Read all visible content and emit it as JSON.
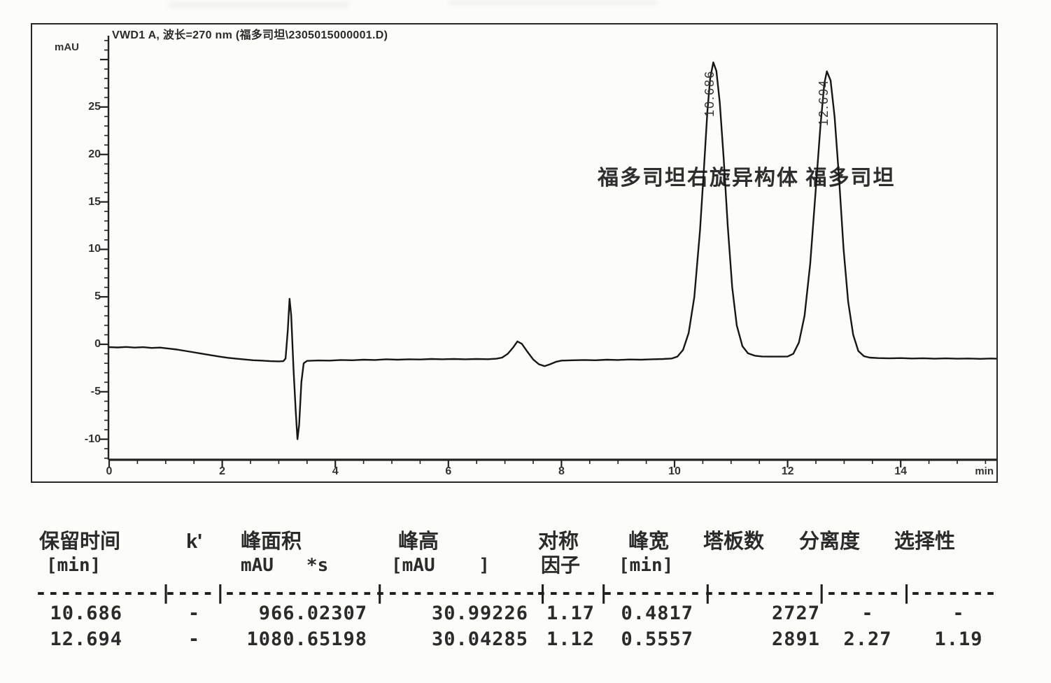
{
  "chromatogram": {
    "title": "VWD1 A, 波长=270 nm (福多司坦\\2305015000001.D)",
    "y_unit": "mAU",
    "x_unit": "min",
    "annotation": "福多司坦右旋异构体 福多司坦"
  },
  "chart_data": {
    "type": "line",
    "title": "VWD1 A, 波长=270 nm (福多司坦\\2305015000001.D)",
    "xlabel": "min",
    "ylabel": "mAU",
    "xlim": [
      0,
      15.7
    ],
    "ylim": [
      -12.2,
      32.5
    ],
    "grid": false,
    "x_ticks": [
      0,
      2,
      4,
      6,
      8,
      10,
      12,
      14
    ],
    "y_ticks": [
      -10,
      -5,
      0,
      5,
      10,
      15,
      20,
      25
    ],
    "peaks": [
      {
        "label": "10.686",
        "t": 10.686,
        "apex_mau": 29.7,
        "name": "福多司坦右旋异构体"
      },
      {
        "label": "12.694",
        "t": 12.694,
        "apex_mau": 28.75,
        "name": "福多司坦"
      }
    ],
    "trace": [
      [
        0,
        -0.3
      ],
      [
        0.15,
        -0.33
      ],
      [
        0.3,
        -0.28
      ],
      [
        0.45,
        -0.35
      ],
      [
        0.6,
        -0.3
      ],
      [
        0.75,
        -0.38
      ],
      [
        0.9,
        -0.35
      ],
      [
        1.05,
        -0.45
      ],
      [
        1.2,
        -0.55
      ],
      [
        1.35,
        -0.7
      ],
      [
        1.5,
        -0.85
      ],
      [
        1.65,
        -1
      ],
      [
        1.8,
        -1.15
      ],
      [
        1.95,
        -1.3
      ],
      [
        2.1,
        -1.42
      ],
      [
        2.25,
        -1.52
      ],
      [
        2.4,
        -1.6
      ],
      [
        2.55,
        -1.68
      ],
      [
        2.7,
        -1.72
      ],
      [
        2.85,
        -1.78
      ],
      [
        3,
        -1.8
      ],
      [
        3.08,
        -1.78
      ],
      [
        3.12,
        -1.5
      ],
      [
        3.16,
        1.5
      ],
      [
        3.19,
        4.8
      ],
      [
        3.22,
        3
      ],
      [
        3.26,
        -2.5
      ],
      [
        3.3,
        -7
      ],
      [
        3.33,
        -10
      ],
      [
        3.36,
        -8.5
      ],
      [
        3.4,
        -4
      ],
      [
        3.44,
        -2
      ],
      [
        3.5,
        -1.75
      ],
      [
        3.7,
        -1.7
      ],
      [
        3.9,
        -1.72
      ],
      [
        4.1,
        -1.65
      ],
      [
        4.3,
        -1.68
      ],
      [
        4.5,
        -1.62
      ],
      [
        4.7,
        -1.65
      ],
      [
        4.9,
        -1.58
      ],
      [
        5.1,
        -1.62
      ],
      [
        5.3,
        -1.58
      ],
      [
        5.5,
        -1.6
      ],
      [
        5.7,
        -1.55
      ],
      [
        5.9,
        -1.58
      ],
      [
        6.1,
        -1.55
      ],
      [
        6.3,
        -1.58
      ],
      [
        6.5,
        -1.55
      ],
      [
        6.7,
        -1.57
      ],
      [
        6.85,
        -1.52
      ],
      [
        6.95,
        -1.4
      ],
      [
        7.05,
        -1
      ],
      [
        7.15,
        -0.3
      ],
      [
        7.22,
        0.3
      ],
      [
        7.3,
        0.05
      ],
      [
        7.4,
        -0.8
      ],
      [
        7.5,
        -1.6
      ],
      [
        7.6,
        -2.1
      ],
      [
        7.7,
        -2.3
      ],
      [
        7.8,
        -2.1
      ],
      [
        7.9,
        -1.85
      ],
      [
        8,
        -1.72
      ],
      [
        8.2,
        -1.68
      ],
      [
        8.4,
        -1.65
      ],
      [
        8.6,
        -1.68
      ],
      [
        8.8,
        -1.62
      ],
      [
        9,
        -1.65
      ],
      [
        9.2,
        -1.6
      ],
      [
        9.4,
        -1.62
      ],
      [
        9.6,
        -1.58
      ],
      [
        9.8,
        -1.55
      ],
      [
        9.95,
        -1.5
      ],
      [
        10.05,
        -1.3
      ],
      [
        10.15,
        -0.6
      ],
      [
        10.25,
        1.2
      ],
      [
        10.35,
        5
      ],
      [
        10.45,
        12
      ],
      [
        10.52,
        18.5
      ],
      [
        10.58,
        24.5
      ],
      [
        10.63,
        28
      ],
      [
        10.686,
        29.7
      ],
      [
        10.74,
        28.8
      ],
      [
        10.8,
        25.5
      ],
      [
        10.87,
        19.5
      ],
      [
        10.94,
        12.5
      ],
      [
        11.02,
        6
      ],
      [
        11.1,
        2
      ],
      [
        11.2,
        -0.2
      ],
      [
        11.3,
        -0.95
      ],
      [
        11.42,
        -1.2
      ],
      [
        11.55,
        -1.28
      ],
      [
        11.7,
        -1.3
      ],
      [
        11.85,
        -1.3
      ],
      [
        12,
        -1.28
      ],
      [
        12.1,
        -1
      ],
      [
        12.2,
        0.2
      ],
      [
        12.3,
        3
      ],
      [
        12.4,
        8.5
      ],
      [
        12.5,
        16.5
      ],
      [
        12.58,
        23
      ],
      [
        12.65,
        27.5
      ],
      [
        12.694,
        28.75
      ],
      [
        12.76,
        27.8
      ],
      [
        12.83,
        24
      ],
      [
        12.91,
        17.5
      ],
      [
        12.99,
        10
      ],
      [
        13.07,
        4.5
      ],
      [
        13.16,
        1
      ],
      [
        13.25,
        -0.7
      ],
      [
        13.35,
        -1.25
      ],
      [
        13.45,
        -1.4
      ],
      [
        13.6,
        -1.45
      ],
      [
        13.8,
        -1.48
      ],
      [
        14,
        -1.45
      ],
      [
        14.2,
        -1.5
      ],
      [
        14.4,
        -1.47
      ],
      [
        14.6,
        -1.52
      ],
      [
        14.8,
        -1.48
      ],
      [
        15,
        -1.52
      ],
      [
        15.2,
        -1.5
      ],
      [
        15.4,
        -1.53
      ],
      [
        15.6,
        -1.5
      ],
      [
        15.7,
        -1.52
      ]
    ]
  },
  "table": {
    "headers_line1": [
      "保留时间",
      "k'",
      "峰面积",
      "峰高",
      "对称",
      "峰宽",
      "塔板数",
      "分离度",
      "选择性"
    ],
    "headers_line2": [
      "[min]",
      "",
      "mAU   *s",
      "[mAU    ]",
      "因子",
      "[min]",
      "",
      "",
      ""
    ],
    "separator": [
      "----------|",
      "----|",
      "------------|",
      "-------------|",
      "-----|",
      "--------|",
      "---------|",
      "------|",
      "-------"
    ],
    "rows": [
      [
        "10.686",
        "-",
        "966.02307",
        "30.99226",
        "1.17",
        "0.4817",
        "2727",
        "-",
        "-"
      ],
      [
        "12.694",
        "-",
        "1080.65198",
        "30.04285",
        "1.12",
        "0.5557",
        "2891",
        "2.27",
        "1.19"
      ]
    ]
  }
}
